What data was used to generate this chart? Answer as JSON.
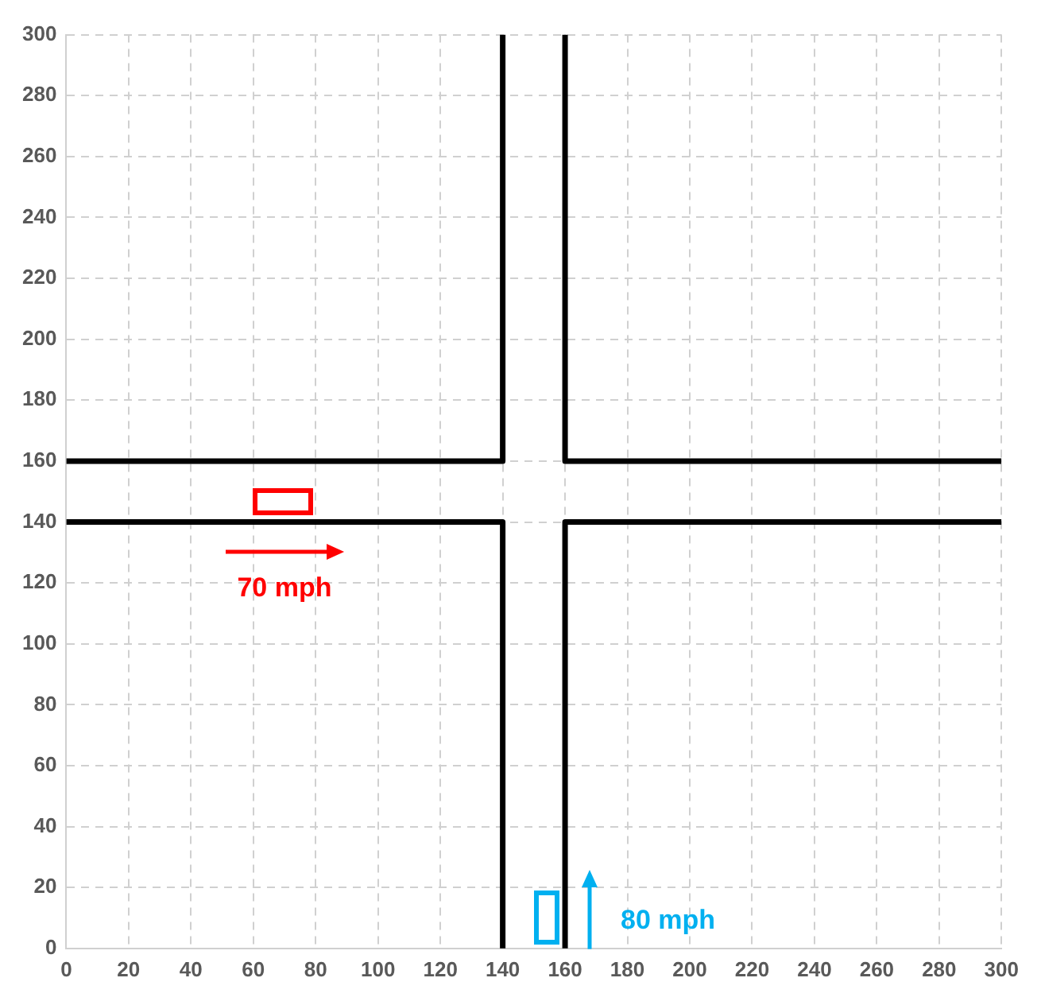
{
  "chart_data": {
    "type": "line",
    "xlim": [
      0,
      300
    ],
    "ylim": [
      0,
      300
    ],
    "xticks": [
      0,
      20,
      40,
      60,
      80,
      100,
      120,
      140,
      160,
      180,
      200,
      220,
      240,
      260,
      280,
      300
    ],
    "yticks": [
      0,
      20,
      40,
      60,
      80,
      100,
      120,
      140,
      160,
      180,
      200,
      220,
      240,
      260,
      280,
      300
    ],
    "grid": true,
    "legend": false,
    "line_style": "solid",
    "series": [
      {
        "color": "#000000",
        "x": [
          0,
          140,
          140
        ],
        "values": [
          160,
          160,
          300
        ]
      },
      {
        "color": "#000000",
        "x": [
          300,
          160,
          160
        ],
        "values": [
          160,
          160,
          300
        ]
      },
      {
        "color": "#000000",
        "x": [
          0,
          140,
          140
        ],
        "values": [
          140,
          140,
          0
        ]
      },
      {
        "color": "#000000",
        "x": [
          300,
          160,
          160
        ],
        "values": [
          140,
          140,
          0
        ]
      }
    ],
    "annotations": [
      "70 mph",
      "80 mph"
    ]
  }
}
